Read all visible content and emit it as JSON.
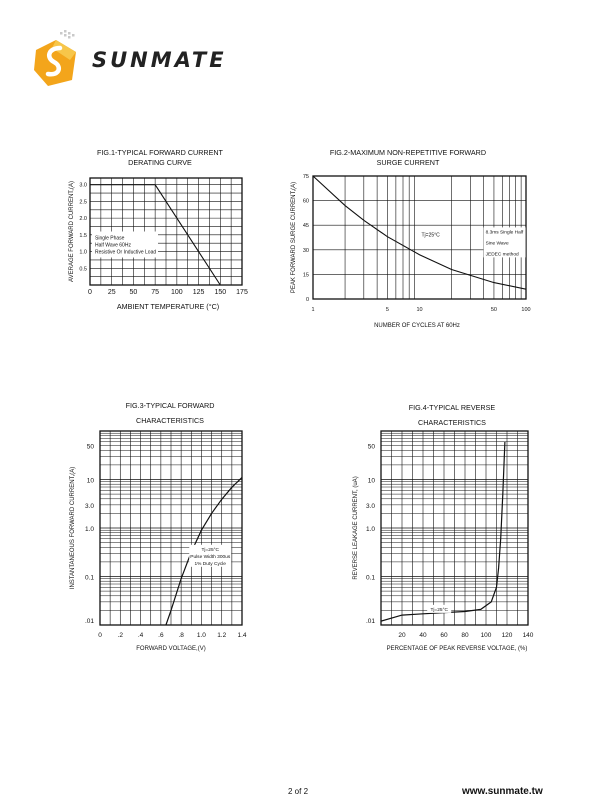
{
  "header": {
    "brand": "SUNMATE"
  },
  "footer": {
    "page": "2 of 2",
    "url": "www.sunmate.tw"
  },
  "chart_data": [
    {
      "id": "fig1",
      "type": "line",
      "title_line1": "FIG.1-TYPICAL FORWARD CURRENT",
      "title_line2": "DERATING CURVE",
      "xlabel": "AMBIENT TEMPERATURE (°C)",
      "ylabel": "AVERAGE FORWARD CURRENT,(A)",
      "xlim": [
        0,
        175
      ],
      "ylim": [
        0,
        3.2
      ],
      "xticks": [
        "0",
        "25",
        "50",
        "75",
        "100",
        "125",
        "150",
        "175"
      ],
      "yticks": [
        "0.5",
        "1.0",
        "1.5",
        "2.0",
        "2.5",
        "3.0"
      ],
      "series": [
        {
          "x": [
            0,
            75,
            150
          ],
          "y": [
            3.0,
            3.0,
            0
          ]
        }
      ],
      "legend": [
        "Single Phase",
        "Half Wave 60Hz",
        "Resistive Or Inductive Load"
      ]
    },
    {
      "id": "fig2",
      "type": "line",
      "title_line1": "FIG.2-MAXIMUM NON-REPETITIVE FORWARD",
      "title_line2": "SURGE CURRENT",
      "xlabel": "NUMBER OF CYCLES AT 60Hz",
      "ylabel": "PEAK FORWARD SURGE CURRENT,(A)",
      "x_scale": "log",
      "xlim": [
        1,
        100
      ],
      "ylim": [
        0,
        75
      ],
      "xticks": [
        "1",
        "5",
        "10",
        "50",
        "100"
      ],
      "yticks": [
        "0",
        "15",
        "30",
        "45",
        "60",
        "75"
      ],
      "series": [
        {
          "x": [
            1,
            2,
            3,
            5,
            10,
            20,
            50,
            100
          ],
          "y": [
            75,
            57,
            48,
            38,
            27,
            18,
            10,
            6
          ]
        }
      ],
      "annotations": [
        "Tj=25°C",
        "8.3ms Single Half",
        "Sine Wave",
        "JEDEC method"
      ]
    },
    {
      "id": "fig3",
      "type": "line",
      "title_line1": "FIG.3-TYPICAL FORWARD",
      "title_line2": "CHARACTERISTICS",
      "xlabel": "FORWARD VOLTAGE,(V)",
      "ylabel": "INSTANTANEOUS FORWARD CURRENT,(A)",
      "y_scale": "log",
      "xlim": [
        0,
        1.4
      ],
      "ylim": [
        0.01,
        100
      ],
      "xticks": [
        "0",
        ".2",
        ".4",
        ".6",
        ".8",
        "1.0",
        "1.2",
        "1.4"
      ],
      "yticks": [
        ".01",
        "0.1",
        "1.0",
        "3.0",
        "10",
        "50"
      ],
      "series": [
        {
          "x": [
            0.65,
            0.7,
            0.8,
            0.9,
            1.0,
            1.1,
            1.2,
            1.3,
            1.4
          ],
          "y": [
            0.01,
            0.02,
            0.09,
            0.32,
            0.9,
            2.0,
            3.9,
            6.9,
            11
          ]
        }
      ],
      "annotations": [
        "Tj=25°C",
        "Pulse Width 300us",
        "1% Duty Cycle"
      ]
    },
    {
      "id": "fig4",
      "type": "line",
      "title_line1": "FIG.4-TYPICAL REVERSE",
      "title_line2": "CHARACTERISTICS",
      "xlabel": "PERCENTAGE OF PEAK REVERSE VOLTAGE, (%)",
      "ylabel": "REVERSE LEAKAGE CURRENT, (uA)",
      "y_scale": "log",
      "xlim": [
        0,
        140
      ],
      "ylim": [
        0.01,
        100
      ],
      "xticks": [
        "20",
        "40",
        "60",
        "80",
        "100",
        "120",
        "140"
      ],
      "yticks": [
        ".01",
        "0.1",
        "1.0",
        "3.0",
        "10",
        "50"
      ],
      "series": [
        {
          "x": [
            0,
            20,
            40,
            60,
            80,
            95,
            105,
            110,
            112,
            114,
            116,
            118
          ],
          "y": [
            0.012,
            0.016,
            0.017,
            0.018,
            0.019,
            0.021,
            0.03,
            0.06,
            0.15,
            0.6,
            5,
            60
          ]
        }
      ],
      "annotations": [
        "Tj=25°C"
      ]
    }
  ]
}
